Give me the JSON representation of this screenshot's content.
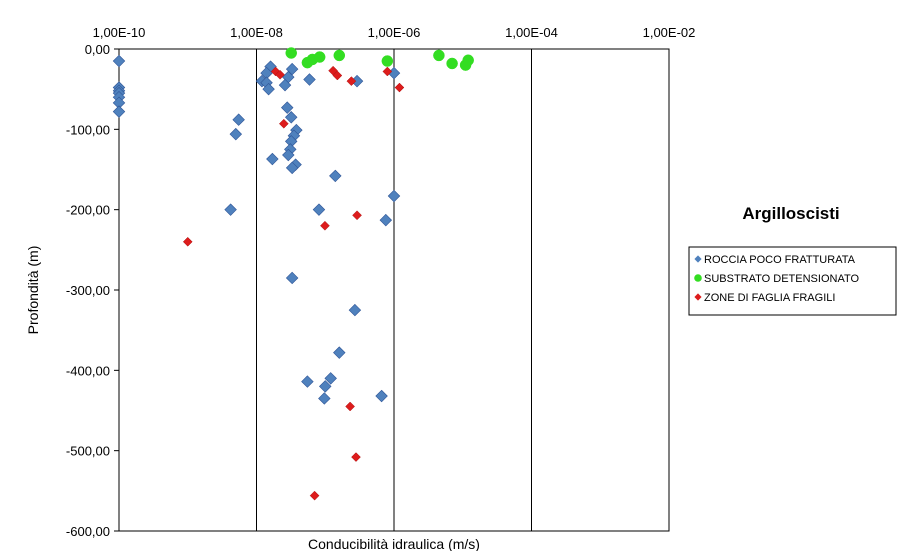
{
  "chart_data": {
    "type": "scatter",
    "title": "Argilloscisti",
    "xlabel": "Conducibilità idraulica (m/s)",
    "ylabel": "Profondità (m)",
    "xscale": "log",
    "xlim": [
      1e-10,
      0.01
    ],
    "ylim": [
      -600,
      0
    ],
    "x_ticks": [
      {
        "value": 1e-10,
        "label": "1,00E-10"
      },
      {
        "value": 1e-08,
        "label": "1,00E-08"
      },
      {
        "value": 1e-06,
        "label": "1,00E-06"
      },
      {
        "value": 0.0001,
        "label": "1,00E-04"
      },
      {
        "value": 0.01,
        "label": "1,00E-02"
      }
    ],
    "y_ticks": [
      {
        "value": 0,
        "label": "0,00"
      },
      {
        "value": -100,
        "label": "-100,00"
      },
      {
        "value": -200,
        "label": "-200,00"
      },
      {
        "value": -300,
        "label": "-300,00"
      },
      {
        "value": -400,
        "label": "-400,00"
      },
      {
        "value": -500,
        "label": "-500,00"
      },
      {
        "value": -600,
        "label": "-600,00"
      }
    ],
    "grid": "vertical-major",
    "legend_position": "right",
    "series": [
      {
        "name": "ROCCIA POCO FRATTURATA",
        "color": "#4f81bd",
        "marker": "diamond",
        "points": [
          {
            "x": 1e-10,
            "y": -15
          },
          {
            "x": 1e-10,
            "y": -48
          },
          {
            "x": 1e-10,
            "y": -52
          },
          {
            "x": 1e-10,
            "y": -55
          },
          {
            "x": 1e-10,
            "y": -60
          },
          {
            "x": 1e-10,
            "y": -67
          },
          {
            "x": 1e-10,
            "y": -78
          },
          {
            "x": 5.5e-09,
            "y": -88
          },
          {
            "x": 5e-09,
            "y": -106
          },
          {
            "x": 4.2e-09,
            "y": -200
          },
          {
            "x": 1.6e-08,
            "y": -22
          },
          {
            "x": 1.4e-08,
            "y": -30
          },
          {
            "x": 1.2e-08,
            "y": -40
          },
          {
            "x": 1.4e-08,
            "y": -42
          },
          {
            "x": 1.5e-08,
            "y": -50
          },
          {
            "x": 2.9e-08,
            "y": -35
          },
          {
            "x": 2.6e-08,
            "y": -45
          },
          {
            "x": 3.3e-08,
            "y": -25
          },
          {
            "x": 1.7e-08,
            "y": -137
          },
          {
            "x": 2.8e-08,
            "y": -73
          },
          {
            "x": 3.2e-08,
            "y": -85
          },
          {
            "x": 3.8e-08,
            "y": -101
          },
          {
            "x": 3.5e-08,
            "y": -108
          },
          {
            "x": 3.2e-08,
            "y": -115
          },
          {
            "x": 3.1e-08,
            "y": -125
          },
          {
            "x": 2.9e-08,
            "y": -132
          },
          {
            "x": 3.7e-08,
            "y": -144
          },
          {
            "x": 3.3e-08,
            "y": -148
          },
          {
            "x": 1.4e-07,
            "y": -158
          },
          {
            "x": 8.1e-08,
            "y": -200
          },
          {
            "x": 5.9e-08,
            "y": -38
          },
          {
            "x": 2.9e-07,
            "y": -40
          },
          {
            "x": 1e-06,
            "y": -30
          },
          {
            "x": 7.6e-07,
            "y": -213
          },
          {
            "x": 1e-06,
            "y": -183
          },
          {
            "x": 3.3e-08,
            "y": -285
          },
          {
            "x": 2.7e-07,
            "y": -325
          },
          {
            "x": 1.6e-07,
            "y": -378
          },
          {
            "x": 5.5e-08,
            "y": -414
          },
          {
            "x": 1e-07,
            "y": -420
          },
          {
            "x": 1.2e-07,
            "y": -410
          },
          {
            "x": 9.7e-08,
            "y": -435
          },
          {
            "x": 6.6e-07,
            "y": -432
          }
        ]
      },
      {
        "name": "SUBSTRATO DETENSIONATO",
        "color": "#33dd22",
        "marker": "circle",
        "points": [
          {
            "x": 3.2e-08,
            "y": -5
          },
          {
            "x": 5.5e-08,
            "y": -17
          },
          {
            "x": 6.5e-08,
            "y": -13
          },
          {
            "x": 8.3e-08,
            "y": -10
          },
          {
            "x": 1.6e-07,
            "y": -8
          },
          {
            "x": 8e-07,
            "y": -15
          },
          {
            "x": 4.5e-06,
            "y": -8
          },
          {
            "x": 7e-06,
            "y": -18
          },
          {
            "x": 1.1e-05,
            "y": -20
          },
          {
            "x": 1.2e-05,
            "y": -14
          }
        ]
      },
      {
        "name": "ZONE DI FAGLIA FRAGILI",
        "color": "#dd1c1c",
        "marker": "diamond",
        "points": [
          {
            "x": 1e-09,
            "y": -240
          },
          {
            "x": 2.5e-08,
            "y": -93
          },
          {
            "x": 1.9e-08,
            "y": -28
          },
          {
            "x": 2.2e-08,
            "y": -32
          },
          {
            "x": 1.3e-07,
            "y": -27
          },
          {
            "x": 1.5e-07,
            "y": -33
          },
          {
            "x": 2.4e-07,
            "y": -40
          },
          {
            "x": 8e-07,
            "y": -28
          },
          {
            "x": 1.2e-06,
            "y": -48
          },
          {
            "x": 2.9e-07,
            "y": -207
          },
          {
            "x": 9.9e-08,
            "y": -220
          },
          {
            "x": 2.3e-07,
            "y": -445
          },
          {
            "x": 2.8e-07,
            "y": -508
          },
          {
            "x": 7e-08,
            "y": -556
          }
        ]
      }
    ]
  }
}
